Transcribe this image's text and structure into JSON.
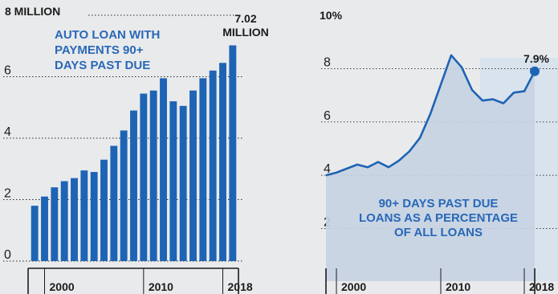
{
  "chart_data": [
    {
      "type": "bar",
      "title": "AUTO LOAN WITH PAYMENTS 90+ DAYS PAST DUE",
      "title_lines": [
        "AUTO LOAN WITH",
        "PAYMENTS 90+",
        "DAYS PAST DUE"
      ],
      "y_unit_label": "8 MILLION",
      "y_ticks": [
        "0",
        "2",
        "4",
        "6"
      ],
      "ylim": [
        0,
        8
      ],
      "x": [
        1999,
        2000,
        2001,
        2002,
        2003,
        2004,
        2005,
        2006,
        2007,
        2008,
        2009,
        2010,
        2011,
        2012,
        2013,
        2014,
        2015,
        2016,
        2017,
        2018,
        2019
      ],
      "x_tick_labels": [
        "2000",
        "2010",
        "2018"
      ],
      "values": [
        1.8,
        2.1,
        2.4,
        2.6,
        2.7,
        2.95,
        2.9,
        3.3,
        3.75,
        4.25,
        4.9,
        5.45,
        5.55,
        5.95,
        5.2,
        5.05,
        5.55,
        5.95,
        6.2,
        6.45,
        7.02
      ],
      "color": "#1e64b4",
      "annotation": {
        "line1": "7.02",
        "line2": "MILLION"
      },
      "grid": true
    },
    {
      "type": "area",
      "title": "90+ DAYS PAST DUE LOANS AS A PERCENTAGE OF ALL LOANS",
      "title_lines": [
        "90+ DAYS PAST DUE",
        "LOANS AS A PERCENTAGE",
        "OF ALL LOANS"
      ],
      "y_unit_label": "10%",
      "y_ticks": [
        "2",
        "4",
        "6",
        "8"
      ],
      "ylim": [
        0,
        10
      ],
      "x": [
        1999,
        2000,
        2001,
        2002,
        2003,
        2004,
        2005,
        2006,
        2007,
        2008,
        2009,
        2010,
        2011,
        2012,
        2013,
        2014,
        2015,
        2016,
        2017,
        2018,
        2019
      ],
      "x_tick_labels": [
        "2000",
        "2010",
        "2018"
      ],
      "values": [
        4.0,
        4.1,
        4.25,
        4.4,
        4.3,
        4.5,
        4.3,
        4.55,
        4.9,
        5.4,
        6.3,
        7.4,
        8.5,
        8.05,
        7.2,
        6.8,
        6.85,
        6.7,
        7.1,
        7.15,
        7.9
      ],
      "color": "#1e64b4",
      "fill": "#c6d3e2",
      "annotation": "7.9%",
      "grid": true
    }
  ]
}
